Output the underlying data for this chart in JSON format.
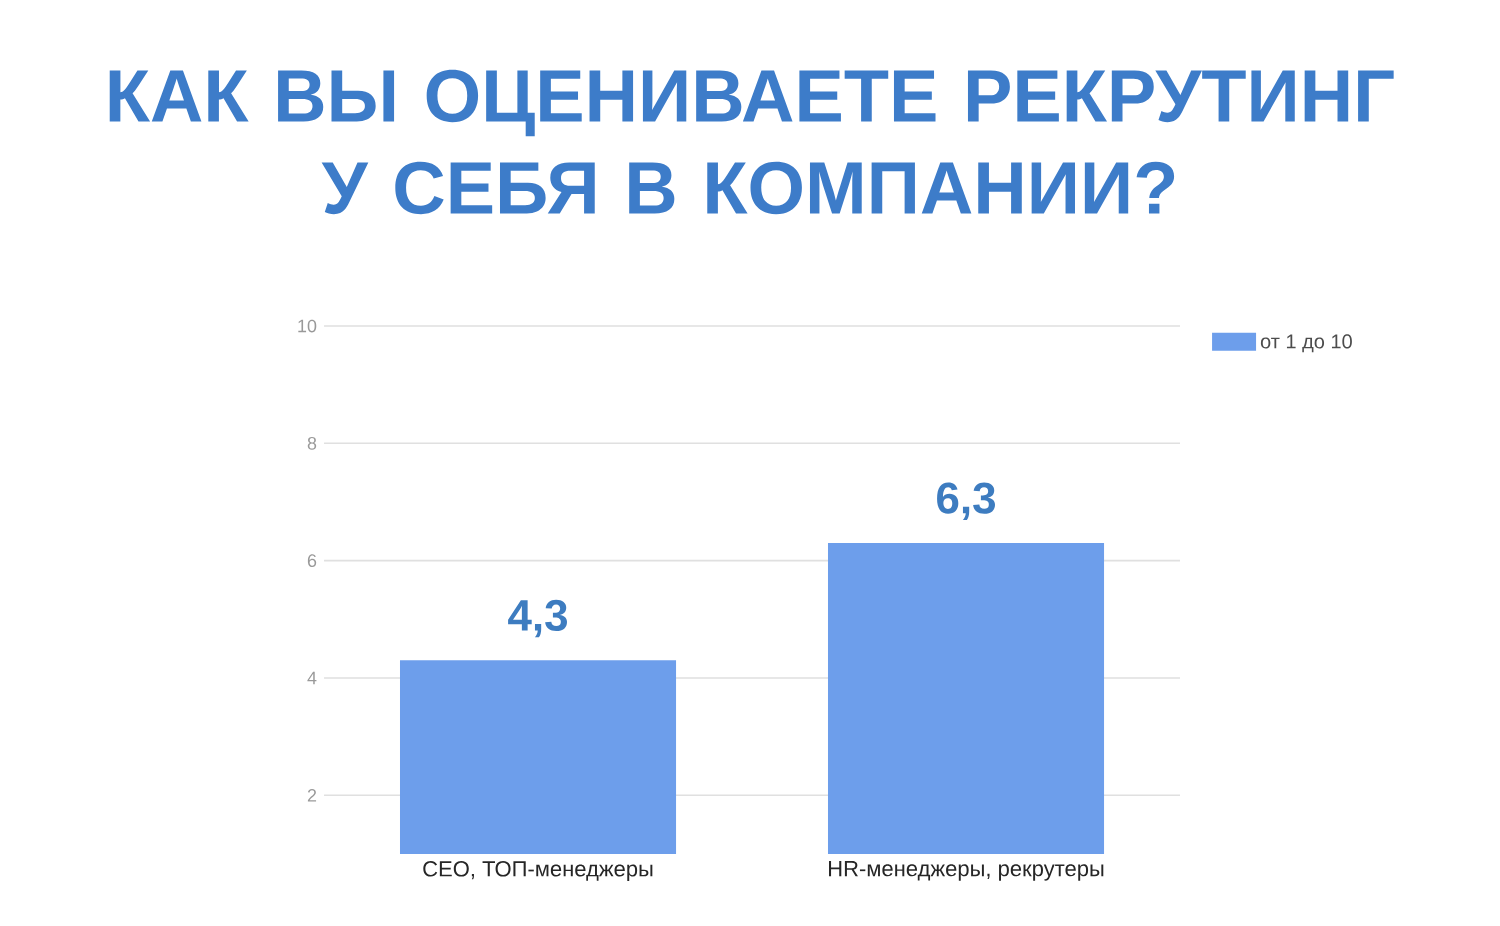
{
  "chart_data": {
    "type": "bar",
    "title": "КАК ВЫ ОЦЕНИВАЕТЕ РЕКРУТИНГ У СЕБЯ В КОМПАНИИ?",
    "categories": [
      "CEO, ТОП-менеджеры",
      "HR-менеджеры, рекрутеры"
    ],
    "series": [
      {
        "name": "от 1 до 10",
        "color": "#6d9eeb",
        "values": [
          4.3,
          6.3
        ],
        "value_labels": [
          "4,3",
          "6,3"
        ]
      }
    ],
    "ylim": [
      1,
      10
    ],
    "yticks": [
      2,
      4,
      6,
      8,
      10
    ],
    "grid": "y",
    "legend": "top right"
  }
}
